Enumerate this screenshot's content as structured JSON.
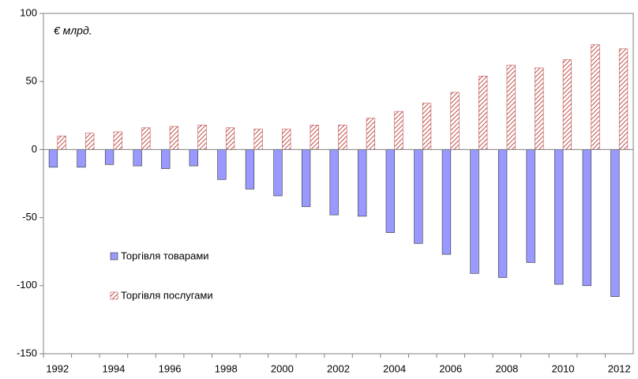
{
  "chart_data": {
    "type": "bar",
    "annotation": "€ млрд.",
    "categories": [
      "1992",
      null,
      "1994",
      null,
      "1996",
      null,
      "1998",
      null,
      "2000",
      null,
      "2002",
      null,
      "2004",
      null,
      "2006",
      null,
      "2008",
      null,
      "2010",
      null,
      "2012"
    ],
    "series": [
      {
        "name": "Торгівля товарами",
        "color": "#9999ff",
        "values": [
          -13,
          -13,
          -11,
          -12,
          -14,
          -12,
          -22,
          -29,
          -34,
          -42,
          -48,
          -49,
          -61,
          -69,
          -77,
          -91,
          -94,
          -83,
          -99,
          -100,
          -108
        ]
      },
      {
        "name": "Торгівля послугами",
        "color": "#c0504d",
        "hatched": true,
        "values": [
          10,
          12,
          13,
          16,
          17,
          18,
          16,
          15,
          15,
          18,
          18,
          23,
          28,
          34,
          42,
          54,
          62,
          60,
          66,
          77,
          74
        ]
      }
    ],
    "ylim": [
      -150,
      100
    ],
    "yticks": [
      -150,
      -100,
      -50,
      0,
      50,
      100
    ],
    "legend": "center left",
    "grid": false
  }
}
